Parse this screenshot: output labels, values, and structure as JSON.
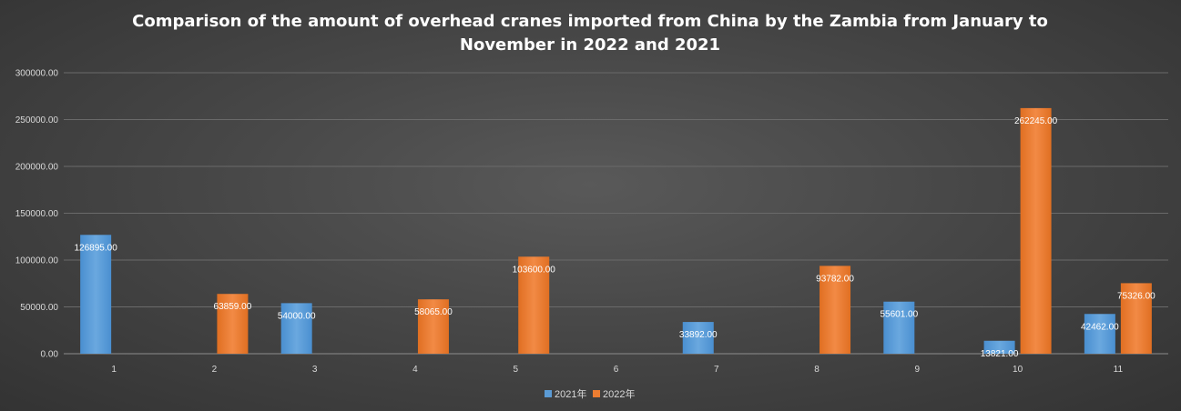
{
  "chart_data": {
    "type": "bar",
    "title": "Comparison of the amount of overhead cranes imported from China by the Zambia from January to November in 2022 and 2021",
    "title_lines": [
      "Comparison of the amount of overhead cranes imported from China by the Zambia from January to",
      "November in 2022 and 2021"
    ],
    "categories": [
      "1",
      "2",
      "3",
      "4",
      "5",
      "6",
      "7",
      "8",
      "9",
      "10",
      "11"
    ],
    "series": [
      {
        "name": "2021年",
        "color": "#5b9bd5",
        "values": [
          126895.0,
          null,
          54000.0,
          null,
          null,
          null,
          33892.0,
          null,
          55601.0,
          13821.0,
          42462.0
        ],
        "labels": [
          "126895.00",
          "",
          "54000.00",
          "",
          "",
          "",
          "33892.00",
          "",
          "55601.00",
          "13821.00",
          "42462.00"
        ]
      },
      {
        "name": "2022年",
        "color": "#ed7d31",
        "values": [
          null,
          63859.0,
          null,
          58065.0,
          103600.0,
          null,
          null,
          93782.0,
          null,
          262245.0,
          75326.0
        ],
        "labels": [
          "",
          "63859.00",
          "",
          "58065.00",
          "103600.00",
          "",
          "",
          "93782.00",
          "",
          "262245.00",
          "75326.00"
        ]
      }
    ],
    "y_ticks": [
      "0.00",
      "50000.00",
      "100000.00",
      "150000.00",
      "200000.00",
      "250000.00",
      "300000.00"
    ],
    "ylim": [
      0,
      300000
    ],
    "grid": true,
    "legend_position": "bottom"
  }
}
